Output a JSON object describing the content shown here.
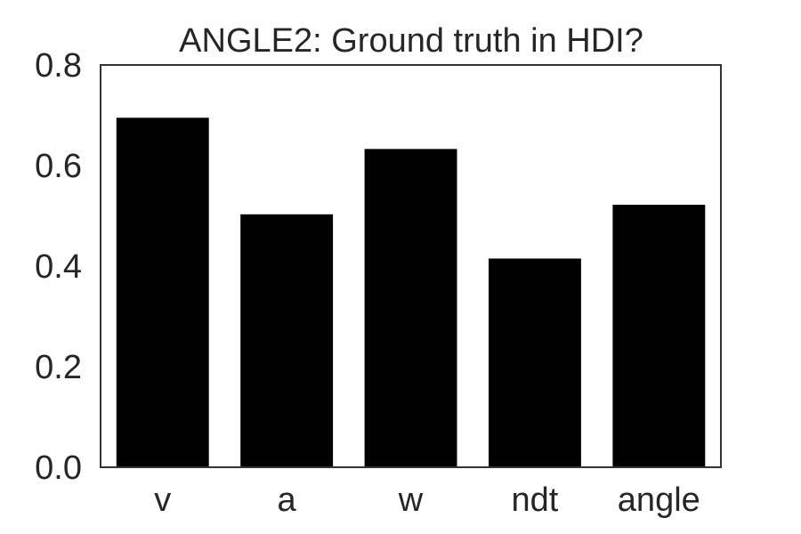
{
  "chart_data": {
    "type": "bar",
    "title": "ANGLE2: Ground truth in HDI?",
    "xlabel": "",
    "ylabel": "",
    "categories": [
      "v",
      "a",
      "w",
      "ndt",
      "angle"
    ],
    "values": [
      0.695,
      0.503,
      0.633,
      0.415,
      0.522
    ],
    "ylim": [
      0,
      0.8
    ],
    "yticks": [
      "0.0",
      "0.2",
      "0.4",
      "0.6",
      "0.8"
    ],
    "grid": false,
    "legend": "none",
    "bar_color": "#000000"
  }
}
